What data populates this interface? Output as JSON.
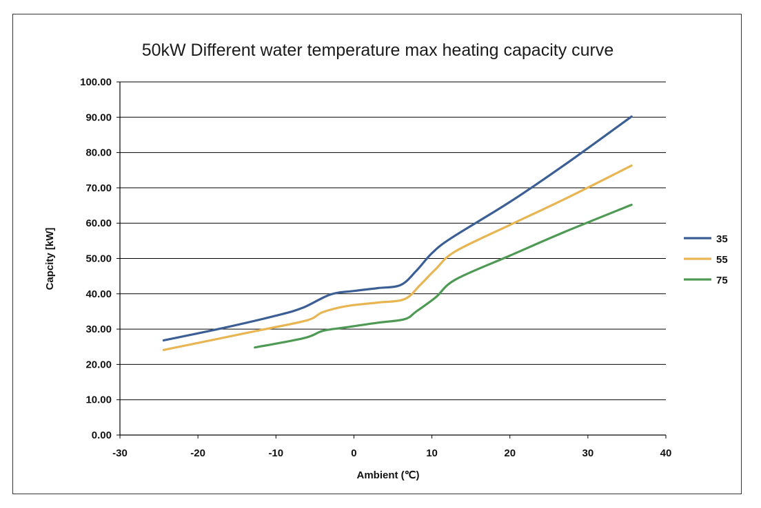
{
  "chart_data": {
    "type": "line",
    "title": "50kW Different water temperature max heating capacity curve",
    "xlabel": "Ambient (℃)",
    "ylabel": "Capcity [kW]",
    "xlim": [
      -30,
      40
    ],
    "ylim": [
      0,
      100
    ],
    "x_ticks": [
      "-30",
      "-20",
      "-10",
      "0",
      "10",
      "20",
      "30",
      "40"
    ],
    "y_ticks": [
      "0.00",
      "10.00",
      "20.00",
      "30.00",
      "40.00",
      "50.00",
      "60.00",
      "70.00",
      "80.00",
      "90.00",
      "100.00"
    ],
    "grid": "horizontal",
    "legend_position": "right",
    "series": [
      {
        "name": "35",
        "color": "#3b5f94",
        "points": [
          [
            -24.4,
            26.8
          ],
          [
            -17,
            30.2
          ],
          [
            -10,
            33.8
          ],
          [
            -6.6,
            36.0
          ],
          [
            -3,
            39.8
          ],
          [
            0,
            40.8
          ],
          [
            3,
            41.6
          ],
          [
            6,
            42.5
          ],
          [
            8,
            46.5
          ],
          [
            10,
            51.5
          ],
          [
            12.5,
            55.8
          ],
          [
            20,
            66.0
          ],
          [
            27,
            76.5
          ],
          [
            35.6,
            90.2
          ]
        ]
      },
      {
        "name": "55",
        "color": "#e8b553",
        "points": [
          [
            -24.4,
            24.1
          ],
          [
            -12,
            29.7
          ],
          [
            -6,
            32.5
          ],
          [
            -4,
            34.8
          ],
          [
            -1,
            36.5
          ],
          [
            3,
            37.5
          ],
          [
            6.5,
            38.5
          ],
          [
            8.5,
            42.5
          ],
          [
            10.5,
            47.0
          ],
          [
            13,
            52.0
          ],
          [
            20,
            59.5
          ],
          [
            27,
            66.8
          ],
          [
            35.6,
            76.3
          ]
        ]
      },
      {
        "name": "75",
        "color": "#4e9a54",
        "points": [
          [
            -12.7,
            24.8
          ],
          [
            -6.3,
            27.5
          ],
          [
            -4,
            29.5
          ],
          [
            -1,
            30.5
          ],
          [
            3,
            31.8
          ],
          [
            6.5,
            32.8
          ],
          [
            8,
            35.0
          ],
          [
            10.5,
            39.0
          ],
          [
            13,
            44.0
          ],
          [
            20,
            50.8
          ],
          [
            27,
            57.5
          ],
          [
            35.6,
            65.2
          ]
        ]
      }
    ]
  }
}
